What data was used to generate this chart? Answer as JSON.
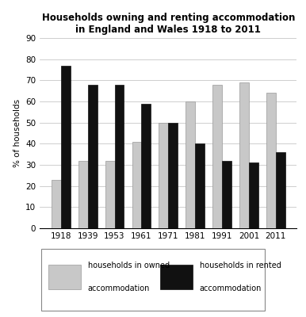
{
  "title": "Households owning and renting accommodation\nin England and Wales 1918 to 2011",
  "years": [
    "1918",
    "1939",
    "1953",
    "1961",
    "1971",
    "1981",
    "1991",
    "2001",
    "2011"
  ],
  "owned": [
    23,
    32,
    32,
    41,
    50,
    60,
    68,
    69,
    64
  ],
  "rented": [
    77,
    68,
    68,
    59,
    50,
    40,
    32,
    31,
    36
  ],
  "owned_color": "#c8c8c8",
  "rented_color": "#111111",
  "ylabel": "% of households",
  "ylim": [
    0,
    90
  ],
  "yticks": [
    0,
    10,
    20,
    30,
    40,
    50,
    60,
    70,
    80,
    90
  ],
  "bar_width": 0.35,
  "legend_owned": "households in owned\naccommodation",
  "legend_rented": "households in rented\naccommodation",
  "title_fontsize": 8.5,
  "axis_fontsize": 7.5,
  "legend_fontsize": 7.0,
  "background_color": "#ffffff"
}
